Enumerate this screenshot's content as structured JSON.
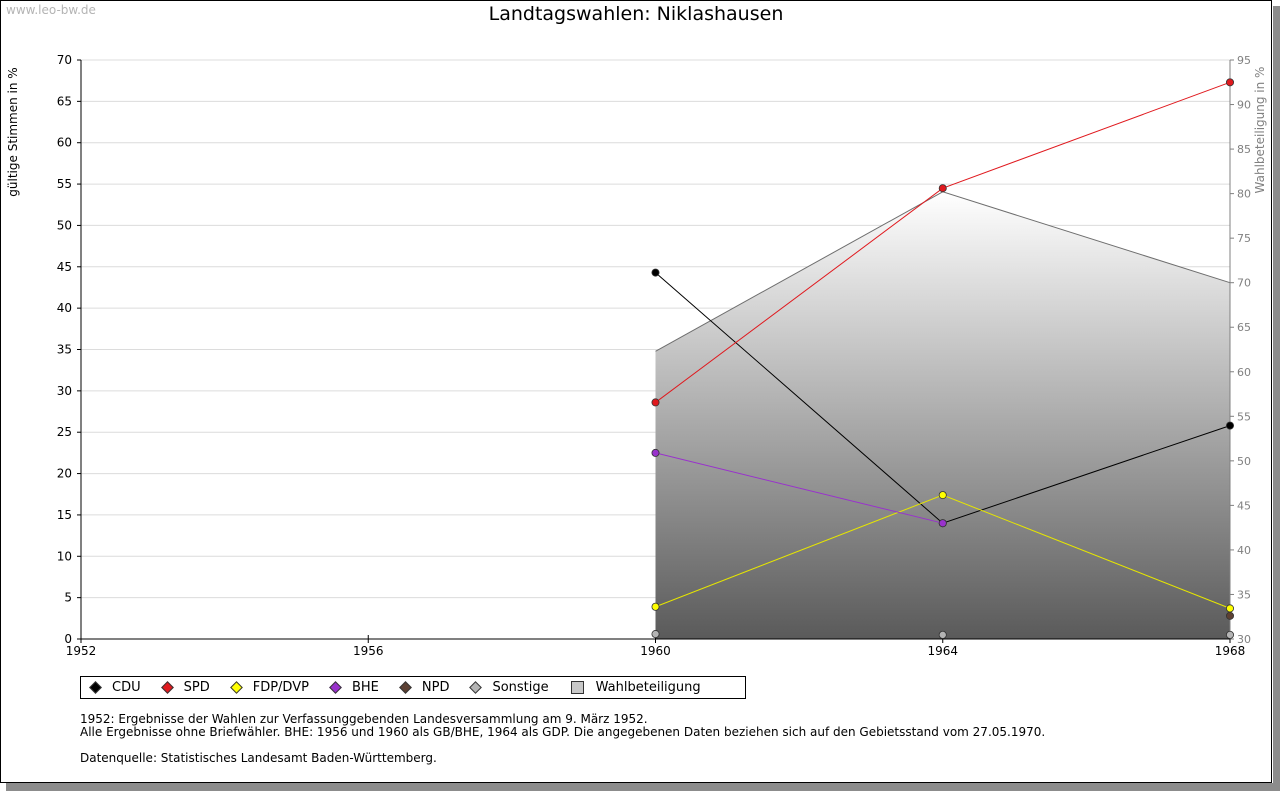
{
  "watermark": "www.leo-bw.de",
  "chart_data": {
    "type": "line",
    "title": "Landtagswahlen: Niklashausen",
    "ylabel": "gültige Stimmen in %",
    "y2label": "Wahlbeteiligung in %",
    "x": [
      1952,
      1956,
      1960,
      1964,
      1968
    ],
    "x_ticks": [
      "1952",
      "1956",
      "1960",
      "1964",
      "1968"
    ],
    "ylim": [
      0,
      70
    ],
    "y_ticks": [
      "0",
      "5",
      "10",
      "15",
      "20",
      "25",
      "30",
      "35",
      "40",
      "45",
      "50",
      "55",
      "60",
      "65",
      "70"
    ],
    "y2lim": [
      30,
      95
    ],
    "y2_ticks": [
      "30",
      "35",
      "40",
      "45",
      "50",
      "55",
      "60",
      "65",
      "70",
      "75",
      "80",
      "85",
      "90",
      "95"
    ],
    "grid": true,
    "legend_position": "bottom",
    "series": [
      {
        "name": "CDU",
        "color": "#000000",
        "x": [
          1960,
          1964,
          1968
        ],
        "values": [
          44.3,
          14.0,
          25.8
        ]
      },
      {
        "name": "SPD",
        "color": "#e0191e",
        "x": [
          1960,
          1964,
          1968
        ],
        "values": [
          28.6,
          54.5,
          67.3
        ]
      },
      {
        "name": "FDP/DVP",
        "color": "#ffff00",
        "x": [
          1960,
          1964,
          1968
        ],
        "values": [
          3.9,
          17.4,
          3.7
        ]
      },
      {
        "name": "BHE",
        "color": "#9932cc",
        "x": [
          1960,
          1964
        ],
        "values": [
          22.5,
          14.0
        ]
      },
      {
        "name": "NPD",
        "color": "#5c4033",
        "x": [
          1968
        ],
        "values": [
          2.8
        ]
      },
      {
        "name": "Sonstige",
        "color": "#b4b4b4",
        "x": [
          1960,
          1964,
          1968
        ],
        "values": [
          0.6,
          0.5,
          0.5
        ]
      }
    ],
    "turnout": {
      "name": "Wahlbeteiligung",
      "color": "#c8c8c8",
      "x": [
        1960,
        1964,
        1968
      ],
      "values": [
        62.3,
        80.2,
        70.0
      ]
    }
  },
  "notes": [
    "1952: Ergebnisse der Wahlen zur Verfassunggebenden Landesversammlung am 9. März 1952.",
    "Alle Ergebnisse ohne Briefwähler. BHE: 1956 und 1960 als GB/BHE, 1964 als GDP. Die angegebenen Daten beziehen sich auf den Gebietsstand vom 27.05.1970.",
    "",
    "Datenquelle: Statistisches Landesamt Baden-Württemberg."
  ]
}
